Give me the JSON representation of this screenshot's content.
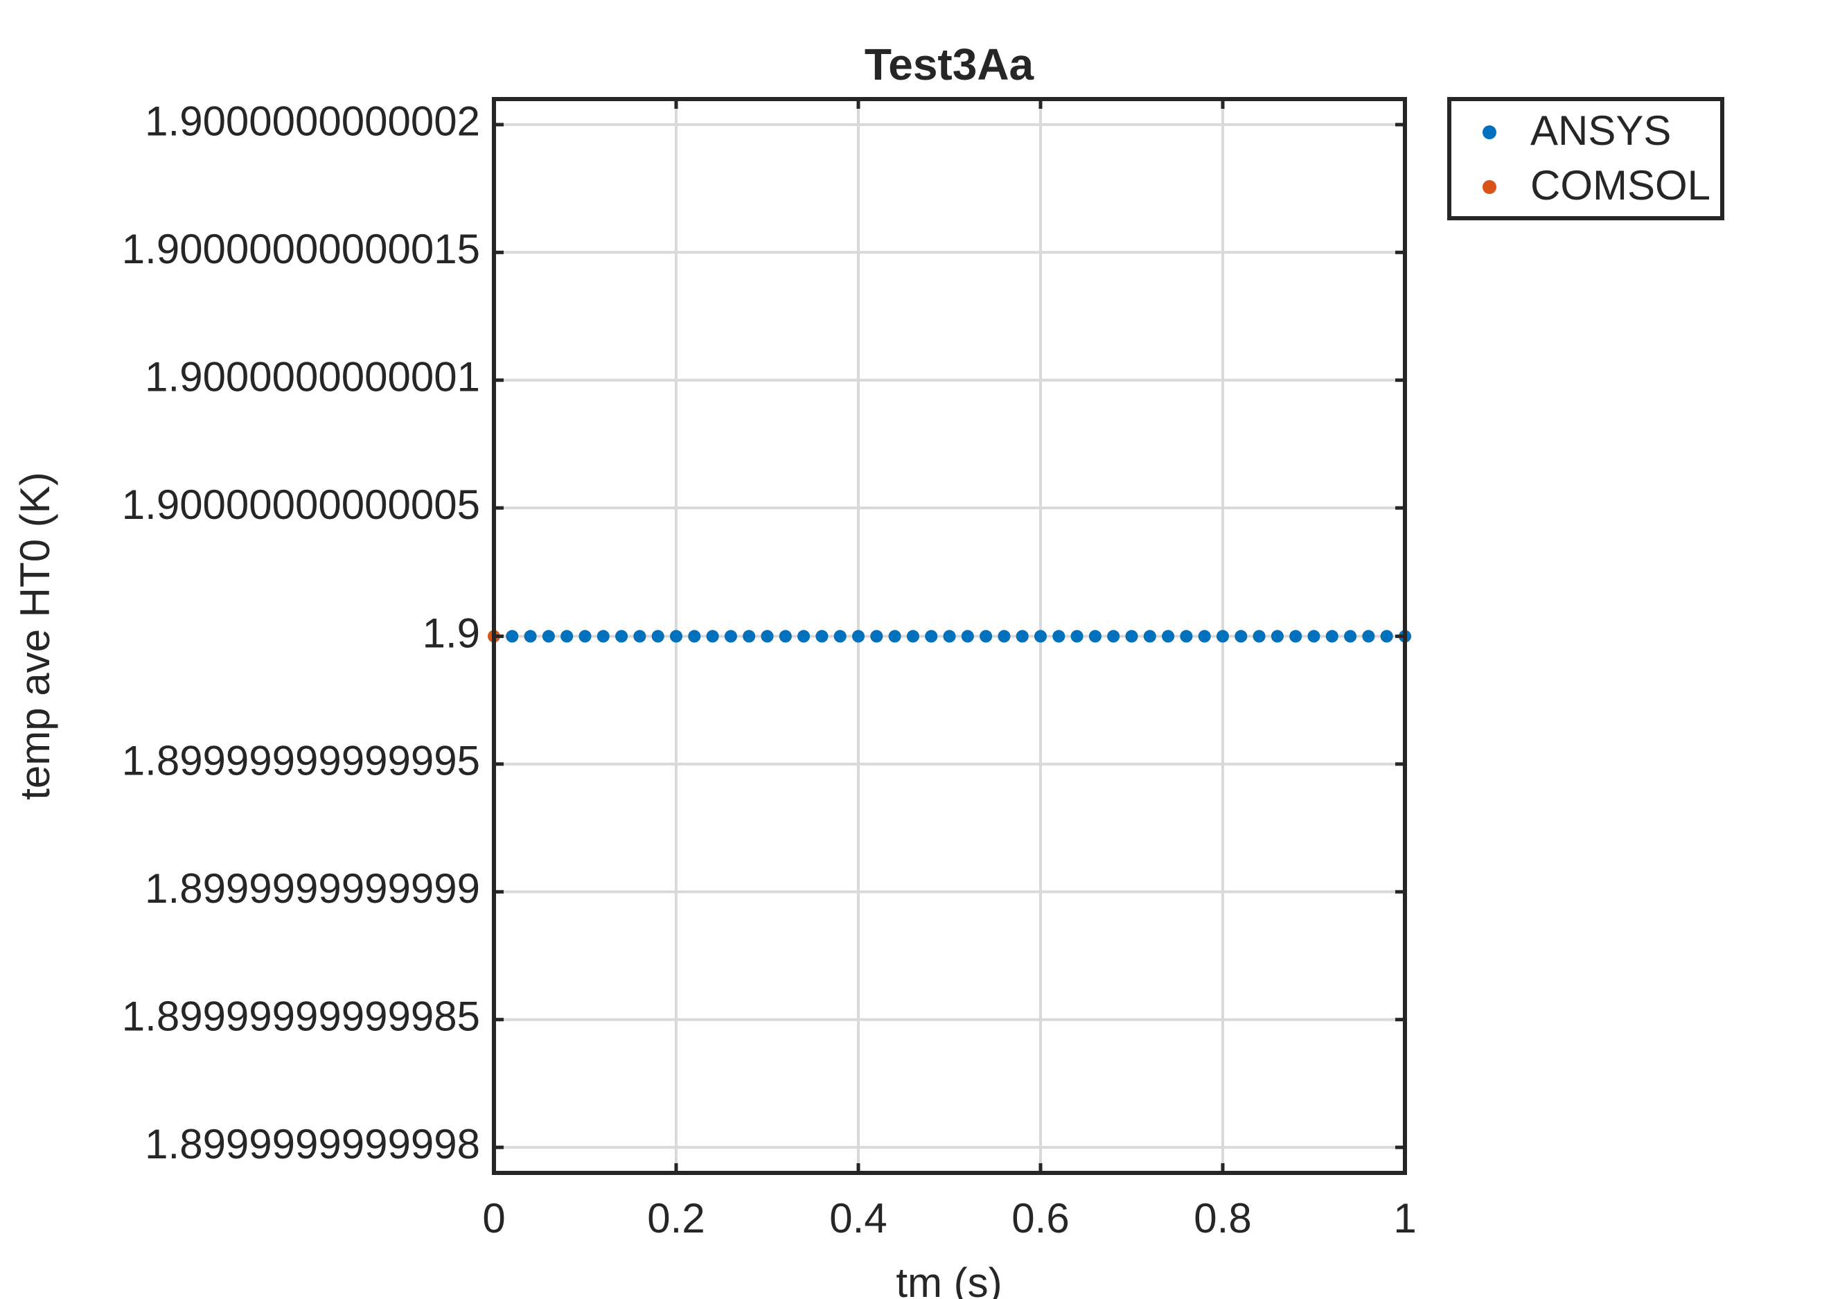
{
  "chart_data": {
    "type": "scatter",
    "title": "Test3Aa",
    "xlabel": "tm (s)",
    "ylabel": "temp ave HT0 (K)",
    "xlim": [
      0,
      1
    ],
    "xticks": [
      0,
      0.2,
      0.4,
      0.6,
      0.8,
      1
    ],
    "ylim": [
      1.89999999999979,
      1.90000000000021
    ],
    "yticks": [
      1.8999999999998,
      1.89999999999985,
      1.8999999999999,
      1.89999999999995,
      1.9,
      1.90000000000005,
      1.9000000000001,
      1.90000000000015,
      1.9000000000002
    ],
    "grid": true,
    "legend": "outside-right-top",
    "series": [
      {
        "name": "ANSYS",
        "color": "#0072BD",
        "x": [
          0.02,
          0.04,
          0.06,
          0.08,
          0.1,
          0.12,
          0.14,
          0.16,
          0.18,
          0.2,
          0.22,
          0.24,
          0.26,
          0.28,
          0.3,
          0.32,
          0.34,
          0.36,
          0.38,
          0.4,
          0.42,
          0.44,
          0.46,
          0.48,
          0.5,
          0.52,
          0.54,
          0.56,
          0.58,
          0.6,
          0.62,
          0.64,
          0.66,
          0.68,
          0.7,
          0.72,
          0.74,
          0.76,
          0.78,
          0.8,
          0.82,
          0.84,
          0.86,
          0.88,
          0.9,
          0.92,
          0.94,
          0.96,
          0.98,
          1
        ],
        "values": [
          1.9,
          1.9,
          1.9,
          1.9,
          1.9,
          1.9,
          1.9,
          1.9,
          1.9,
          1.9,
          1.9,
          1.9,
          1.9,
          1.9,
          1.9,
          1.9,
          1.9,
          1.9,
          1.9,
          1.9,
          1.9,
          1.9,
          1.9,
          1.9,
          1.9,
          1.9,
          1.9,
          1.9,
          1.9,
          1.9,
          1.9,
          1.9,
          1.9,
          1.9,
          1.9,
          1.9,
          1.9,
          1.9,
          1.9,
          1.9,
          1.9,
          1.9,
          1.9,
          1.9,
          1.9,
          1.9,
          1.9,
          1.9,
          1.9,
          1.9
        ]
      },
      {
        "name": "COMSOL",
        "color": "#D95319",
        "x": [
          0,
          0.02,
          0.04,
          0.06,
          0.08,
          0.1,
          0.12,
          0.14,
          0.16,
          0.18,
          0.2,
          0.22,
          0.24,
          0.26,
          0.28,
          0.3,
          0.32,
          0.34,
          0.36,
          0.38,
          0.4,
          0.42,
          0.44,
          0.46,
          0.48,
          0.5,
          0.52,
          0.54,
          0.56,
          0.58,
          0.6,
          0.62,
          0.64,
          0.66,
          0.68,
          0.7,
          0.72,
          0.74,
          0.76,
          0.78,
          0.8,
          0.82,
          0.84,
          0.86,
          0.88,
          0.9,
          0.92,
          0.94,
          0.96,
          0.98,
          1
        ],
        "values": [
          1.9,
          1.9,
          1.9,
          1.9,
          1.9,
          1.9,
          1.9,
          1.9,
          1.9,
          1.9,
          1.9,
          1.9,
          1.9,
          1.9,
          1.9,
          1.9,
          1.9,
          1.9,
          1.9,
          1.9,
          1.9,
          1.9,
          1.9,
          1.9,
          1.9,
          1.9,
          1.9,
          1.9,
          1.9,
          1.9,
          1.9,
          1.9,
          1.9,
          1.9,
          1.9,
          1.9,
          1.9,
          1.9,
          1.9,
          1.9,
          1.9,
          1.9,
          1.9,
          1.9,
          1.9,
          1.9,
          1.9,
          1.9,
          1.9,
          1.9,
          1.9
        ]
      }
    ]
  }
}
